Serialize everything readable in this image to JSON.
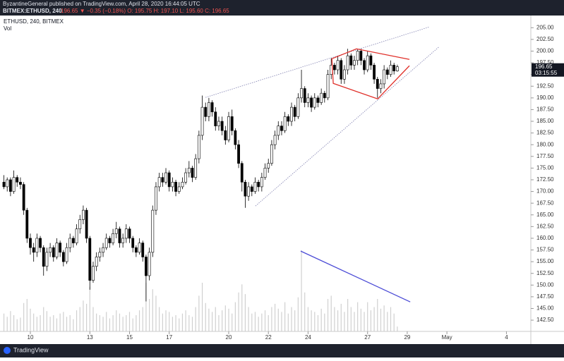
{
  "header": {
    "publisher": "ByzantineGeneral published on TradingView.com, April 28, 2020 16:44:05 UTC",
    "symbol": "BITMEX:ETHUSD, 240",
    "quote": "196.65 ▼ −0.35 (−0.18%) O: 195.75 H: 197.10 L: 195.60 C: 196.65"
  },
  "footer": {
    "brand": "TradingView"
  },
  "chart_data": {
    "type": "candlestick",
    "title": "ETHUSD, 240, BITMEX",
    "volume_label": "Vol",
    "countdown": "03:15:55",
    "up_color": "#ffffff",
    "down_color": "#000000",
    "border_color": "#000000",
    "volume_color": "#d0d0d0",
    "grid": false,
    "xlim": [
      8.47,
      35.23
    ],
    "ylim": [
      140.1,
      206.4
    ],
    "volume_ylim": [
      0,
      100
    ],
    "xticks": [
      10,
      13,
      15,
      17,
      20,
      22,
      24,
      27,
      29,
      {
        "value": 31,
        "label": "May"
      },
      {
        "value": 34,
        "label": "4"
      }
    ],
    "yticks": [
      {
        "value": 142.5,
        "label": "142.50"
      },
      {
        "value": 145,
        "label": "145.00"
      },
      {
        "value": 147.5,
        "label": "147.50"
      },
      {
        "value": 150,
        "label": "150.00"
      },
      {
        "value": 152.5,
        "label": "152.50"
      },
      {
        "value": 155,
        "label": "155.00"
      },
      {
        "value": 157.5,
        "label": "157.50"
      },
      {
        "value": 160,
        "label": "160.00"
      },
      {
        "value": 162.5,
        "label": "162.50"
      },
      {
        "value": 165,
        "label": "165.00"
      },
      {
        "value": 167.5,
        "label": "167.50"
      },
      {
        "value": 170,
        "label": "170.00"
      },
      {
        "value": 172.5,
        "label": "172.50"
      },
      {
        "value": 175,
        "label": "175.00"
      },
      {
        "value": 177.5,
        "label": "177.50"
      },
      {
        "value": 180,
        "label": "180.00"
      },
      {
        "value": 182.5,
        "label": "182.50"
      },
      {
        "value": 185,
        "label": "185.00"
      },
      {
        "value": 187.5,
        "label": "187.50"
      },
      {
        "value": 190,
        "label": "190.00"
      },
      {
        "value": 192.5,
        "label": "192.50"
      },
      {
        "value": 195,
        "label": "195.00"
      },
      {
        "value": 197.5,
        "label": "197.50"
      },
      {
        "value": 200,
        "label": "200.00"
      },
      {
        "value": 202.5,
        "label": "202.50"
      },
      {
        "value": 205,
        "label": "205.00"
      }
    ],
    "x": [
      8.667,
      8.833,
      9,
      9.167,
      9.333,
      9.5,
      9.667,
      9.833,
      10,
      10.167,
      10.333,
      10.5,
      10.667,
      10.833,
      11,
      11.167,
      11.333,
      11.5,
      11.667,
      11.833,
      12,
      12.167,
      12.333,
      12.5,
      12.667,
      12.833,
      13,
      13.167,
      13.333,
      13.5,
      13.667,
      13.833,
      14,
      14.167,
      14.333,
      14.5,
      14.667,
      14.833,
      15,
      15.167,
      15.333,
      15.5,
      15.667,
      15.833,
      16,
      16.167,
      16.333,
      16.5,
      16.667,
      16.833,
      17,
      17.167,
      17.333,
      17.5,
      17.667,
      17.833,
      18,
      18.167,
      18.333,
      18.5,
      18.667,
      18.833,
      19,
      19.167,
      19.333,
      19.5,
      19.667,
      19.833,
      20,
      20.167,
      20.333,
      20.5,
      20.667,
      20.833,
      21,
      21.167,
      21.333,
      21.5,
      21.667,
      21.833,
      22,
      22.167,
      22.333,
      22.5,
      22.667,
      22.833,
      23,
      23.167,
      23.333,
      23.5,
      23.667,
      23.833,
      24,
      24.167,
      24.333,
      24.5,
      24.667,
      24.833,
      25,
      25.167,
      25.333,
      25.5,
      25.667,
      25.833,
      26,
      26.167,
      26.333,
      26.5,
      26.667,
      26.833,
      27,
      27.167,
      27.333,
      27.5,
      27.667,
      27.833,
      28,
      28.167,
      28.333,
      28.5
    ],
    "ohlc": [
      [
        172,
        173.5,
        170.5,
        171
      ],
      [
        171,
        173,
        170,
        172.5
      ],
      [
        172.5,
        173,
        169,
        170
      ],
      [
        170,
        174.5,
        169.5,
        173
      ],
      [
        173,
        173.5,
        171,
        172
      ],
      [
        172,
        173,
        170.5,
        171.5
      ],
      [
        171.5,
        172,
        165,
        166
      ],
      [
        166,
        166.5,
        159,
        160
      ],
      [
        160,
        161,
        156.5,
        158
      ],
      [
        158,
        159,
        155,
        157
      ],
      [
        157,
        161,
        156,
        160
      ],
      [
        160,
        160.5,
        157,
        158
      ],
      [
        158,
        158.5,
        152,
        154
      ],
      [
        154,
        158,
        153,
        157
      ],
      [
        157,
        159,
        156,
        158
      ],
      [
        158,
        158.5,
        155,
        156
      ],
      [
        156,
        160,
        155.5,
        159
      ],
      [
        159,
        159.5,
        156,
        157
      ],
      [
        157,
        157.5,
        154,
        155
      ],
      [
        155,
        159,
        154.5,
        158
      ],
      [
        158,
        161,
        157,
        160
      ],
      [
        160,
        160.5,
        158,
        159
      ],
      [
        159,
        163,
        158.5,
        162
      ],
      [
        162,
        165,
        161,
        164
      ],
      [
        164,
        167,
        163,
        166
      ],
      [
        166,
        166.5,
        159,
        160
      ],
      [
        160,
        160.5,
        149,
        151
      ],
      [
        151,
        155,
        150.5,
        154
      ],
      [
        154,
        157,
        153,
        156
      ],
      [
        156,
        158,
        155,
        157
      ],
      [
        157,
        159,
        156,
        158
      ],
      [
        158,
        161,
        157.5,
        160
      ],
      [
        160,
        160.5,
        158,
        159
      ],
      [
        159,
        162,
        158.5,
        161
      ],
      [
        161,
        163.5,
        160,
        162
      ],
      [
        162,
        162.5,
        158,
        159
      ],
      [
        159,
        161,
        158,
        160
      ],
      [
        160,
        163,
        159,
        162
      ],
      [
        162,
        162.5,
        159,
        160
      ],
      [
        160,
        160.5,
        157,
        158
      ],
      [
        158,
        158.5,
        156,
        157
      ],
      [
        157,
        160,
        156.5,
        159
      ],
      [
        159,
        159.5,
        155,
        156
      ],
      [
        156,
        156.5,
        146.5,
        152
      ],
      [
        152,
        158,
        151,
        157
      ],
      [
        157,
        167,
        156,
        166
      ],
      [
        166,
        172,
        165,
        171
      ],
      [
        171,
        174,
        170,
        173
      ],
      [
        173,
        174,
        171,
        172
      ],
      [
        172,
        175,
        171.5,
        174
      ],
      [
        174,
        174.5,
        170,
        171
      ],
      [
        171,
        173,
        170,
        172
      ],
      [
        172,
        172.5,
        169,
        170
      ],
      [
        170,
        172,
        169.5,
        171
      ],
      [
        171,
        173,
        170.5,
        172
      ],
      [
        172,
        175,
        171.5,
        174
      ],
      [
        174,
        176.5,
        173,
        175
      ],
      [
        175,
        175.5,
        172,
        173
      ],
      [
        173,
        178,
        172.5,
        177
      ],
      [
        177,
        183,
        176,
        182
      ],
      [
        182,
        190.5,
        181,
        188
      ],
      [
        188,
        189,
        185,
        186
      ],
      [
        186,
        190,
        185,
        189
      ],
      [
        189,
        189.5,
        186,
        187
      ],
      [
        187,
        188,
        183,
        184
      ],
      [
        184,
        186,
        183,
        185
      ],
      [
        185,
        186,
        182,
        183
      ],
      [
        183,
        184,
        180,
        181
      ],
      [
        181,
        187,
        180.5,
        186
      ],
      [
        186,
        187.5,
        182,
        183
      ],
      [
        183,
        183.5,
        179,
        180
      ],
      [
        180,
        181,
        175,
        176
      ],
      [
        176,
        176.5,
        170,
        172
      ],
      [
        172,
        172.5,
        166.5,
        169
      ],
      [
        169,
        172,
        168,
        171
      ],
      [
        171,
        171.5,
        169,
        170
      ],
      [
        170,
        173,
        169.5,
        172
      ],
      [
        172,
        172.5,
        170,
        171
      ],
      [
        171,
        174,
        170,
        173
      ],
      [
        173,
        176,
        172.5,
        175
      ],
      [
        175,
        177,
        174,
        176
      ],
      [
        176,
        181,
        175.5,
        180
      ],
      [
        180,
        183,
        179,
        182
      ],
      [
        182,
        185,
        181,
        184
      ],
      [
        184,
        185,
        182,
        183
      ],
      [
        183,
        187,
        182.5,
        186
      ],
      [
        186,
        186.5,
        184,
        185
      ],
      [
        185,
        189,
        184,
        188
      ],
      [
        188,
        188.5,
        185,
        186
      ],
      [
        186,
        191,
        185.5,
        190
      ],
      [
        190,
        196,
        189,
        192
      ],
      [
        192,
        192.5,
        188,
        189
      ],
      [
        189,
        191,
        188,
        190
      ],
      [
        190,
        190.5,
        187,
        188
      ],
      [
        188,
        191,
        187.5,
        190
      ],
      [
        190,
        190.5,
        188,
        189
      ],
      [
        189,
        192,
        188.5,
        191
      ],
      [
        191,
        191.5,
        189,
        190
      ],
      [
        190,
        196,
        189.5,
        195
      ],
      [
        195,
        198.5,
        194,
        197
      ],
      [
        197,
        197.5,
        195,
        196
      ],
      [
        196,
        199,
        195,
        198
      ],
      [
        198,
        198.5,
        193,
        194
      ],
      [
        194,
        197,
        193,
        196
      ],
      [
        196,
        200.5,
        195,
        199
      ],
      [
        199,
        199.5,
        196,
        197
      ],
      [
        197,
        199,
        196,
        198
      ],
      [
        198,
        200.5,
        197,
        200
      ],
      [
        200,
        200.5,
        197,
        198
      ],
      [
        198,
        198.5,
        195,
        196
      ],
      [
        196,
        200,
        195.5,
        199
      ],
      [
        199,
        199.5,
        196,
        197
      ],
      [
        197,
        197.5,
        193,
        194
      ],
      [
        194,
        194.5,
        190,
        192
      ],
      [
        192,
        194,
        191,
        193
      ],
      [
        193,
        197,
        192,
        196
      ],
      [
        196,
        196.5,
        194,
        195
      ],
      [
        195,
        198,
        194.5,
        197
      ],
      [
        197,
        197.5,
        195,
        195.75
      ],
      [
        195.75,
        197.1,
        195.6,
        196.65
      ]
    ],
    "volume": [
      22,
      18,
      25,
      20,
      15,
      17,
      35,
      40,
      28,
      22,
      18,
      20,
      30,
      25,
      18,
      20,
      16,
      22,
      24,
      18,
      20,
      15,
      26,
      30,
      38,
      34,
      55,
      30,
      22,
      20,
      18,
      24,
      16,
      20,
      26,
      22,
      18,
      20,
      24,
      16,
      20,
      26,
      30,
      60,
      40,
      52,
      44,
      30,
      22,
      26,
      24,
      18,
      20,
      16,
      22,
      26,
      20,
      18,
      30,
      44,
      60,
      35,
      28,
      24,
      30,
      20,
      26,
      32,
      28,
      22,
      36,
      48,
      58,
      46,
      30,
      22,
      24,
      18,
      22,
      26,
      20,
      30,
      34,
      28,
      24,
      36,
      22,
      30,
      26,
      42,
      100,
      48,
      30,
      26,
      24,
      20,
      28,
      22,
      40,
      44,
      30,
      26,
      34,
      24,
      40,
      30,
      24,
      36,
      28,
      24,
      36,
      26,
      30,
      40,
      28,
      32,
      24,
      30,
      22,
      6
    ],
    "drawings": [
      {
        "style": "dotted",
        "color": "#8080b0",
        "x": [
          18.83,
          30.11
        ],
        "y": [
          190.1,
          205.15
        ]
      },
      {
        "style": "dotted",
        "color": "#8080b0",
        "x": [
          21.35,
          30.6
        ],
        "y": [
          166.9,
          200.9
        ]
      },
      {
        "style": "solid",
        "color": "#e0302a",
        "x": [
          25.2,
          26.44,
          29.11
        ],
        "y": [
          198.37,
          200.48,
          198.22
        ]
      },
      {
        "style": "solid",
        "color": "#e0302a",
        "x": [
          25.2,
          25.27,
          27.51,
          29.11
        ],
        "y": [
          198.37,
          193.1,
          189.79,
          196.87
        ]
      },
      {
        "style": "solid",
        "color": "#4b4bd6",
        "x": [
          23.63,
          29.15
        ],
        "y": [
          157.26,
          146.4
        ]
      }
    ]
  }
}
